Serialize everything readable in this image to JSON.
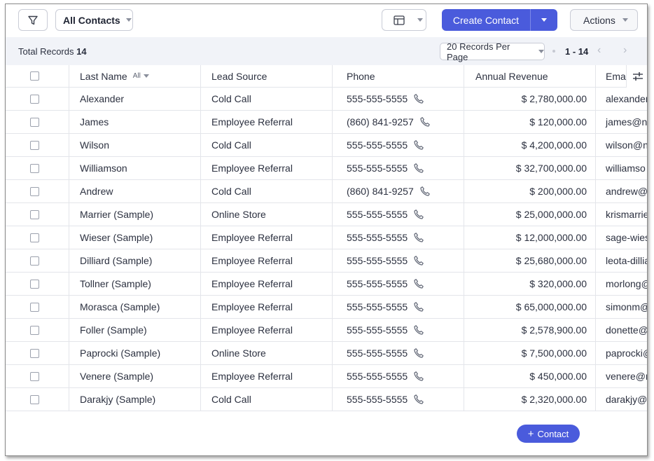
{
  "toolbar": {
    "filter_icon": "filter-icon",
    "view_label": "All Contacts",
    "layout_icon": "table-layout-icon",
    "create_label": "Create Contact",
    "actions_label": "Actions",
    "accent_color": "#4a5bdc"
  },
  "records_bar": {
    "total_label": "Total Records",
    "total_count": "14",
    "per_page": "20 Records Per Page",
    "range": "1 - 14",
    "prev": "‹",
    "next": "›"
  },
  "columns": {
    "last_name": "Last Name",
    "last_name_filter": "All",
    "lead_source": "Lead Source",
    "phone": "Phone",
    "annual_revenue": "Annual Revenue",
    "email": "Ema"
  },
  "rows": [
    {
      "last_name": "Alexander",
      "lead_source": "Cold Call",
      "phone": "555-555-5555",
      "revenue": "$ 2,780,000.00",
      "email": "alexander"
    },
    {
      "last_name": "James",
      "lead_source": "Employee Referral",
      "phone": "(860) 841-9257",
      "revenue": "$ 120,000.00",
      "email": "james@n"
    },
    {
      "last_name": "Wilson",
      "lead_source": "Cold Call",
      "phone": "555-555-5555",
      "revenue": "$ 4,200,000.00",
      "email": "wilson@n"
    },
    {
      "last_name": "Williamson",
      "lead_source": "Employee Referral",
      "phone": "555-555-5555",
      "revenue": "$ 32,700,000.00",
      "email": "williamso"
    },
    {
      "last_name": "Andrew",
      "lead_source": "Cold Call",
      "phone": "(860) 841-9257",
      "revenue": "$ 200,000.00",
      "email": "andrew@"
    },
    {
      "last_name": "Marrier (Sample)",
      "lead_source": "Online Store",
      "phone": "555-555-5555",
      "revenue": "$ 25,000,000.00",
      "email": "krismarrie"
    },
    {
      "last_name": "Wieser (Sample)",
      "lead_source": "Employee Referral",
      "phone": "555-555-5555",
      "revenue": "$ 12,000,000.00",
      "email": "sage-wies"
    },
    {
      "last_name": "Dilliard (Sample)",
      "lead_source": "Employee Referral",
      "phone": "555-555-5555",
      "revenue": "$ 25,680,000.00",
      "email": "leota-dillia"
    },
    {
      "last_name": "Tollner (Sample)",
      "lead_source": "Employee Referral",
      "phone": "555-555-5555",
      "revenue": "$ 320,000.00",
      "email": "morlong@"
    },
    {
      "last_name": "Morasca (Sample)",
      "lead_source": "Employee Referral",
      "phone": "555-555-5555",
      "revenue": "$ 65,000,000.00",
      "email": "simonm@"
    },
    {
      "last_name": "Foller (Sample)",
      "lead_source": "Employee Referral",
      "phone": "555-555-5555",
      "revenue": "$ 2,578,900.00",
      "email": "donette@"
    },
    {
      "last_name": "Paprocki (Sample)",
      "lead_source": "Online Store",
      "phone": "555-555-5555",
      "revenue": "$ 7,500,000.00",
      "email": "paprocki@"
    },
    {
      "last_name": "Venere (Sample)",
      "lead_source": "Employee Referral",
      "phone": "555-555-5555",
      "revenue": "$ 450,000.00",
      "email": "venere@r"
    },
    {
      "last_name": "Darakjy (Sample)",
      "lead_source": "Cold Call",
      "phone": "555-555-5555",
      "revenue": "$ 2,320,000.00",
      "email": "darakjy@"
    }
  ],
  "fab": {
    "plus": "+",
    "label": "Contact"
  }
}
